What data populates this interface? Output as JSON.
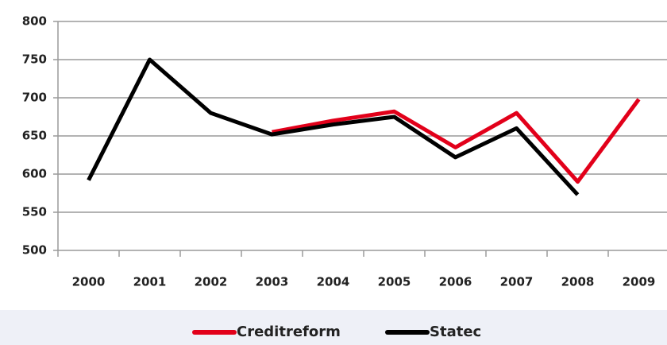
{
  "chart_data": {
    "type": "line",
    "categories": [
      "2000",
      "2001",
      "2002",
      "2003",
      "2004",
      "2005",
      "2006",
      "2007",
      "2008",
      "2009"
    ],
    "series": [
      {
        "name": "Creditreform",
        "color": "#e2001a",
        "values": [
          null,
          null,
          null,
          655,
          670,
          682,
          635,
          680,
          590,
          698
        ]
      },
      {
        "name": "Statec",
        "color": "#000000",
        "values": [
          592,
          750,
          680,
          652,
          665,
          675,
          622,
          660,
          573,
          null
        ]
      }
    ],
    "ylim": [
      500,
      800
    ],
    "yticks": [
      500,
      550,
      600,
      650,
      700,
      750,
      800
    ],
    "grid": true
  }
}
